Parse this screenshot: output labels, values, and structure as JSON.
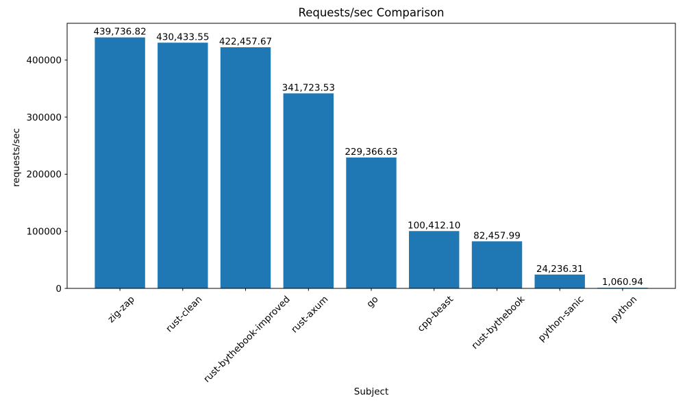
{
  "chart_data": {
    "type": "bar",
    "title": "Requests/sec Comparison",
    "xlabel": "Subject",
    "ylabel": "requests/sec",
    "categories": [
      "zig-zap",
      "rust-clean",
      "rust-bythebook-improved",
      "rust-axum",
      "go",
      "cpp-beast",
      "rust-bythebook",
      "python-sanic",
      "python"
    ],
    "values": [
      439736.82,
      430433.55,
      422457.67,
      341723.53,
      229366.63,
      100412.1,
      82457.99,
      24236.31,
      1060.94
    ],
    "value_labels": [
      "439,736.82",
      "430,433.55",
      "422,457.67",
      "341,723.53",
      "229,366.63",
      "100,412.10",
      "82,457.99",
      "24,236.31",
      "1,060.94"
    ],
    "yticks": [
      0,
      100000,
      200000,
      300000,
      400000
    ],
    "ytick_labels": [
      "0",
      "100000",
      "200000",
      "300000",
      "400000"
    ],
    "ylim": [
      0,
      464440
    ],
    "bar_color": "#1f77b4",
    "axis_color": "#000000",
    "text_color": "#000000",
    "background_color": "#ffffff",
    "grid": false,
    "legend": null,
    "xtick_rotation": 45
  }
}
